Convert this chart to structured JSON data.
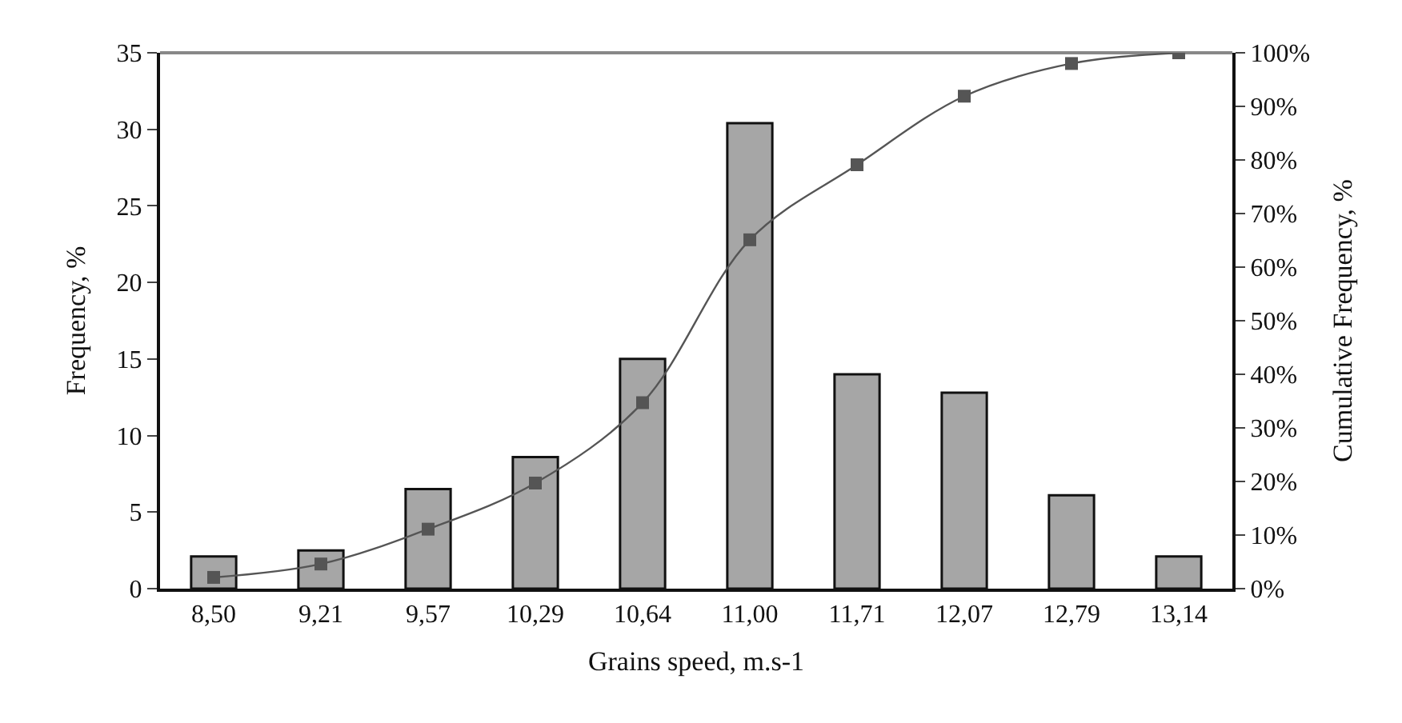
{
  "chart_data": {
    "type": "bar",
    "xlabel": "Grains speed, m.s-1",
    "ylabel": "Frequency, %",
    "y2label": "Cumulative Frequency, %",
    "categories": [
      "8,50",
      "9,21",
      "9,57",
      "10,29",
      "10,64",
      "11,00",
      "11,71",
      "12,07",
      "12,79",
      "13,14"
    ],
    "series": [
      {
        "color": "#a6a6a6",
        "values": [
          2.1,
          2.5,
          6.5,
          8.6,
          15.0,
          30.4,
          14.0,
          12.8,
          6.1,
          2.1
        ]
      },
      {
        "type": "line",
        "axis": "y2",
        "color": "#555555",
        "marker": "square",
        "line_style": "solid",
        "values": [
          2.1,
          4.6,
          11.1,
          19.7,
          34.7,
          65.1,
          79.1,
          91.9,
          98,
          100
        ]
      }
    ],
    "ylim": [
      0,
      35
    ],
    "yticks": [
      0,
      5,
      10,
      15,
      20,
      25,
      30,
      35
    ],
    "y2lim": [
      0,
      100
    ],
    "y2ticks": [
      {
        "value": 0,
        "label": "0%"
      },
      {
        "value": 10,
        "label": "10%"
      },
      {
        "value": 20,
        "label": "20%"
      },
      {
        "value": 30,
        "label": "30%"
      },
      {
        "value": 40,
        "label": "40%"
      },
      {
        "value": 50,
        "label": "50%"
      },
      {
        "value": 60,
        "label": "60%"
      },
      {
        "value": 70,
        "label": "70%"
      },
      {
        "value": 80,
        "label": "80%"
      },
      {
        "value": 90,
        "label": "90%"
      },
      {
        "value": 100,
        "label": "100%"
      }
    ],
    "grid": false,
    "legend": false
  }
}
